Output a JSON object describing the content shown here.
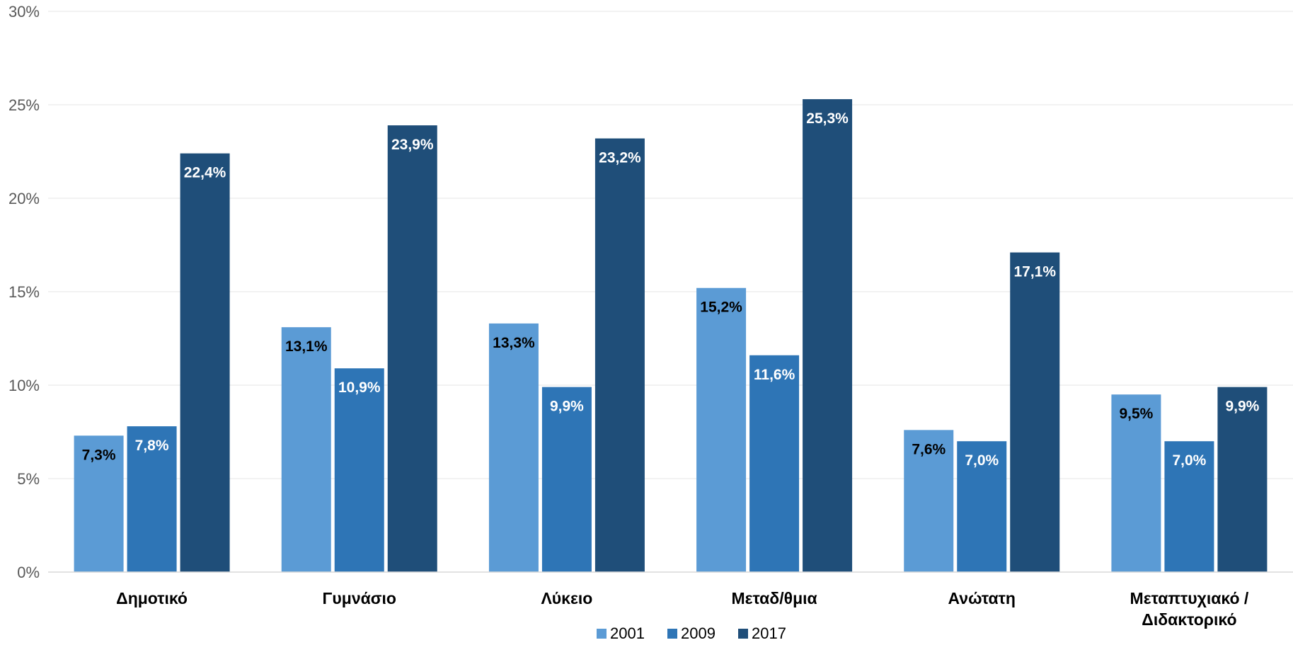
{
  "chart_data": {
    "type": "bar",
    "title": "",
    "categories": [
      "Δημοτικό",
      "Γυμνάσιο",
      "Λύκειο",
      "Μεταδ/θμια",
      "Ανώτατη",
      "Μεταπτυχιακό / Διδακτορικό"
    ],
    "category_lines": [
      [
        "Δημοτικό"
      ],
      [
        "Γυμνάσιο"
      ],
      [
        "Λύκειο"
      ],
      [
        "Μεταδ/θμια"
      ],
      [
        "Ανώτατη"
      ],
      [
        "Μεταπτυχιακό /",
        "Διδακτορικό"
      ]
    ],
    "series": [
      {
        "name": "2001",
        "color": "#5B9BD5",
        "label_color": "#000000",
        "values": [
          7.3,
          13.1,
          13.3,
          15.2,
          7.6,
          9.5
        ],
        "labels": [
          "7,3%",
          "13,1%",
          "13,3%",
          "15,2%",
          "7,6%",
          "9,5%"
        ]
      },
      {
        "name": "2009",
        "color": "#2E75B6",
        "label_color": "#ffffff",
        "values": [
          7.8,
          10.9,
          9.9,
          11.6,
          7.0,
          7.0
        ],
        "labels": [
          "7,8%",
          "10,9%",
          "9,9%",
          "11,6%",
          "7,0%",
          "7,0%"
        ]
      },
      {
        "name": "2017",
        "color": "#1F4E79",
        "label_color": "#ffffff",
        "values": [
          22.4,
          23.9,
          23.2,
          25.3,
          17.1,
          9.9
        ],
        "labels": [
          "22,4%",
          "23,9%",
          "23,2%",
          "25,3%",
          "17,1%",
          "9,9%"
        ]
      }
    ],
    "ylim": [
      0,
      30
    ],
    "yticks": [
      0,
      5,
      10,
      15,
      20,
      25,
      30
    ],
    "ytick_labels": [
      "0%",
      "5%",
      "10%",
      "15%",
      "20%",
      "25%",
      "30%"
    ],
    "grid": true,
    "legend_position": "bottom"
  }
}
